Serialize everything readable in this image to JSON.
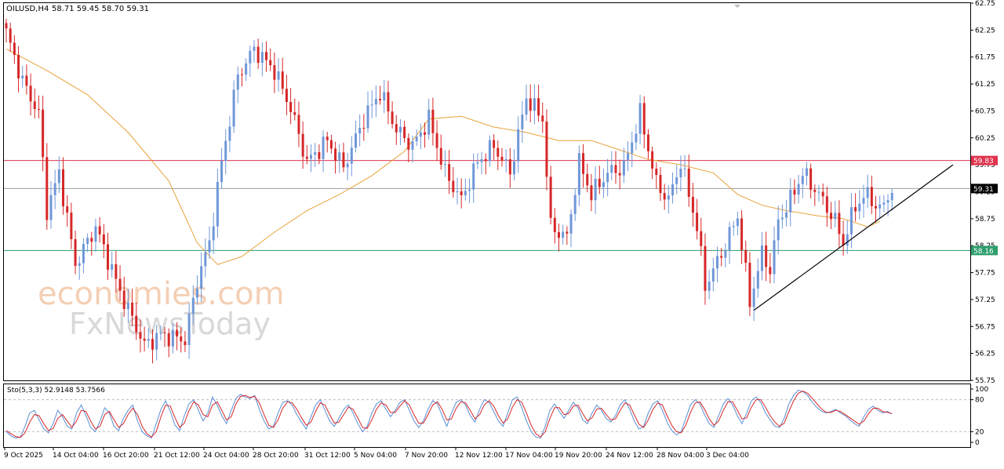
{
  "header": {
    "symbol": "OILUSD,H4",
    "ohlc": "58.71 59.45 58.70 59.31"
  },
  "watermark": {
    "line1": "economies.com",
    "line2": "FxNewsToday"
  },
  "colors": {
    "bull": "#6f97d8",
    "bear": "#d62728",
    "ma": "#e8a33c",
    "resistance": "#e0334d",
    "support": "#2e9e6b",
    "current": "#9e9e9e",
    "trend": "#000000",
    "stoch_main": "#5b8fd6",
    "stoch_signal": "#d62728"
  },
  "chart_data": [
    {
      "type": "candlestick",
      "symbol": "OILUSD",
      "timeframe": "H4",
      "ylim": [
        55.75,
        62.75
      ],
      "y_ticks": [
        "62.75",
        "62.25",
        "61.75",
        "61.25",
        "60.75",
        "60.25",
        "59.75",
        "59.25",
        "58.75",
        "58.25",
        "57.75",
        "57.25",
        "56.75",
        "56.25",
        "55.75"
      ],
      "x_ticks": [
        "9 Oct 2025",
        "14 Oct 04:00",
        "16 Oct 20:00",
        "21 Oct 12:00",
        "24 Oct 04:00",
        "28 Oct 20:00",
        "31 Oct 12:00",
        "5 Nov 04:00",
        "7 Nov 20:00",
        "12 Nov 12:00",
        "17 Nov 04:00",
        "19 Nov 20:00",
        "24 Nov 12:00",
        "28 Nov 04:00",
        "3 Dec 04:00"
      ],
      "levels": {
        "resistance": {
          "value": 59.83,
          "label": "59.83"
        },
        "current": {
          "value": 59.31,
          "label": "59.31"
        },
        "support": {
          "value": 58.16,
          "label": "58.16"
        }
      },
      "moving_average_path": [
        [
          0,
          61.9
        ],
        [
          10,
          61.5
        ],
        [
          20,
          61.05
        ],
        [
          30,
          60.35
        ],
        [
          40,
          59.45
        ],
        [
          47,
          58.3
        ],
        [
          52,
          57.9
        ],
        [
          58,
          58.05
        ],
        [
          66,
          58.5
        ],
        [
          74,
          58.9
        ],
        [
          82,
          59.2
        ],
        [
          90,
          59.55
        ],
        [
          98,
          60.0
        ],
        [
          104,
          60.6
        ],
        [
          112,
          60.65
        ],
        [
          120,
          60.45
        ],
        [
          128,
          60.35
        ],
        [
          136,
          60.2
        ],
        [
          144,
          60.2
        ],
        [
          150,
          60.05
        ],
        [
          158,
          59.85
        ],
        [
          166,
          59.75
        ],
        [
          174,
          59.6
        ],
        [
          180,
          59.2
        ],
        [
          186,
          59.0
        ],
        [
          192,
          58.9
        ],
        [
          200,
          58.8
        ],
        [
          206,
          58.75
        ],
        [
          212,
          58.6
        ],
        [
          215,
          58.7
        ]
      ],
      "trendline": {
        "from": [
          184,
          57.05
        ],
        "to": [
          233,
          59.75
        ]
      },
      "swing_points": [
        [
          0,
          62.2
        ],
        [
          4,
          61.3
        ],
        [
          8,
          60.7
        ],
        [
          10,
          58.9
        ],
        [
          13,
          59.6
        ],
        [
          17,
          57.9
        ],
        [
          22,
          58.6
        ],
        [
          28,
          57.4
        ],
        [
          34,
          56.4
        ],
        [
          38,
          56.6
        ],
        [
          44,
          56.5
        ],
        [
          47,
          57.6
        ],
        [
          50,
          58.3
        ],
        [
          53,
          59.8
        ],
        [
          57,
          61.4
        ],
        [
          61,
          61.9
        ],
        [
          66,
          61.5
        ],
        [
          70,
          60.8
        ],
        [
          74,
          59.8
        ],
        [
          79,
          60.2
        ],
        [
          83,
          59.7
        ],
        [
          88,
          60.6
        ],
        [
          92,
          61.1
        ],
        [
          96,
          60.4
        ],
        [
          100,
          60.1
        ],
        [
          104,
          60.6
        ],
        [
          108,
          59.6
        ],
        [
          112,
          59.1
        ],
        [
          116,
          59.8
        ],
        [
          120,
          60.1
        ],
        [
          124,
          59.6
        ],
        [
          128,
          61.0
        ],
        [
          132,
          60.6
        ],
        [
          134,
          58.6
        ],
        [
          138,
          58.4
        ],
        [
          141,
          59.8
        ],
        [
          144,
          59.2
        ],
        [
          148,
          59.6
        ],
        [
          152,
          59.7
        ],
        [
          156,
          60.7
        ],
        [
          160,
          59.4
        ],
        [
          163,
          59.1
        ],
        [
          166,
          59.8
        ],
        [
          170,
          58.6
        ],
        [
          172,
          57.5
        ],
        [
          176,
          58.1
        ],
        [
          180,
          58.8
        ],
        [
          183,
          57.2
        ],
        [
          186,
          58.1
        ],
        [
          188,
          57.8
        ],
        [
          190,
          58.7
        ],
        [
          193,
          59.1
        ],
        [
          196,
          59.6
        ],
        [
          200,
          59.2
        ],
        [
          204,
          58.7
        ],
        [
          206,
          58.3
        ],
        [
          209,
          59.0
        ],
        [
          212,
          59.2
        ],
        [
          215,
          58.9
        ],
        [
          218,
          59.3
        ]
      ]
    },
    {
      "type": "line",
      "title": "Sto(5,3,3) 52.9148 53.7566",
      "ylim": [
        0,
        100
      ],
      "y_ticks": [
        "100",
        "80",
        "20",
        "0"
      ],
      "series": [
        {
          "name": "main",
          "values": [
            20,
            12,
            8,
            10,
            30,
            55,
            60,
            42,
            25,
            18,
            35,
            60,
            48,
            30,
            25,
            55,
            70,
            50,
            28,
            20,
            40,
            65,
            55,
            30,
            22,
            45,
            60,
            70,
            40,
            20,
            12,
            8,
            35,
            62,
            78,
            58,
            32,
            22,
            50,
            72,
            80,
            60,
            40,
            55,
            85,
            70,
            50,
            35,
            60,
            82,
            90,
            85,
            82,
            88,
            62,
            40,
            25,
            30,
            55,
            75,
            78,
            70,
            52,
            38,
            25,
            48,
            70,
            80,
            60,
            40,
            30,
            45,
            62,
            70,
            55,
            35,
            20,
            30,
            55,
            72,
            78,
            62,
            48,
            60,
            75,
            80,
            60,
            40,
            28,
            40,
            62,
            78,
            72,
            50,
            30,
            55,
            75,
            80,
            70,
            50,
            38,
            62,
            80,
            75,
            58,
            40,
            30,
            55,
            80,
            85,
            65,
            40,
            20,
            10,
            8,
            30,
            60,
            72,
            58,
            45,
            60,
            75,
            65,
            42,
            35,
            55,
            70,
            60,
            45,
            38,
            50,
            70,
            80,
            62,
            40,
            25,
            30,
            55,
            72,
            78,
            60,
            38,
            22,
            14,
            20,
            45,
            70,
            80,
            72,
            52,
            35,
            28,
            50,
            72,
            82,
            70,
            50,
            35,
            55,
            78,
            85,
            75,
            55,
            42,
            30,
            28,
            45,
            72,
            88,
            98,
            95,
            88,
            75,
            65,
            58,
            55,
            58,
            62,
            55,
            50,
            42,
            35,
            30,
            48,
            62,
            68,
            60,
            55,
            58,
            53
          ]
        },
        {
          "name": "signal",
          "values": [
            22,
            16,
            11,
            9,
            18,
            38,
            52,
            50,
            35,
            22,
            26,
            45,
            52,
            40,
            28,
            40,
            60,
            58,
            40,
            25,
            30,
            52,
            58,
            42,
            28,
            35,
            52,
            64,
            52,
            30,
            16,
            10,
            20,
            48,
            70,
            68,
            46,
            28,
            36,
            60,
            76,
            70,
            52,
            48,
            70,
            76,
            60,
            42,
            48,
            72,
            86,
            88,
            84,
            86,
            74,
            52,
            32,
            28,
            42,
            64,
            76,
            74,
            62,
            46,
            32,
            38,
            58,
            74,
            70,
            52,
            36,
            38,
            52,
            66,
            62,
            46,
            28,
            26,
            42,
            62,
            74,
            70,
            56,
            56,
            68,
            78,
            70,
            52,
            36,
            36,
            52,
            70,
            76,
            62,
            42,
            44,
            64,
            76,
            74,
            60,
            44,
            52,
            70,
            78,
            68,
            50,
            36,
            44,
            66,
            80,
            75,
            55,
            32,
            16,
            10,
            20,
            45,
            65,
            65,
            52,
            54,
            68,
            70,
            54,
            40,
            46,
            62,
            64,
            52,
            42,
            44,
            60,
            74,
            70,
            52,
            34,
            28,
            42,
            62,
            74,
            70,
            50,
            32,
            20,
            18,
            32,
            56,
            74,
            76,
            62,
            44,
            32,
            40,
            60,
            76,
            76,
            60,
            44,
            46,
            66,
            80,
            80,
            66,
            50,
            38,
            30,
            36,
            58,
            78,
            92,
            96,
            92,
            82,
            72,
            62,
            56,
            56,
            60,
            58,
            52,
            46,
            40,
            34,
            40,
            54,
            64,
            64,
            58,
            56,
            54
          ]
        }
      ]
    }
  ]
}
